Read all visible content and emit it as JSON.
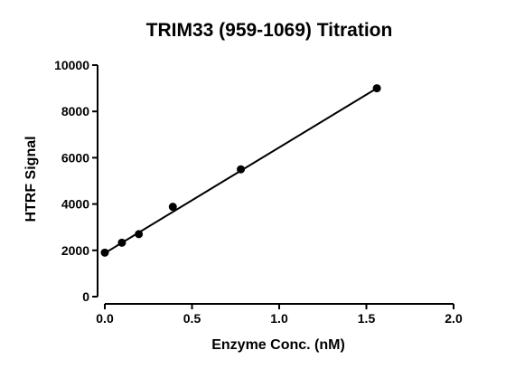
{
  "chart_data": {
    "type": "scatter",
    "title": "TRIM33 (959-1069) Titration",
    "xlabel": "Enzyme Conc. (nM)",
    "ylabel": "HTRF Signal",
    "xlim": [
      0,
      2.0
    ],
    "ylim": [
      0,
      10000
    ],
    "x_ticks": [
      0.0,
      0.5,
      1.0,
      1.5,
      2.0
    ],
    "x_tick_labels": [
      "0.0",
      "0.5",
      "1.0",
      "1.5",
      "2.0"
    ],
    "y_ticks": [
      0,
      2000,
      4000,
      6000,
      8000,
      10000
    ],
    "y_tick_labels": [
      "0",
      "2000",
      "4000",
      "6000",
      "8000",
      "10000"
    ],
    "grid": false,
    "series": [
      {
        "x": [
          0.0,
          0.098,
          0.195,
          0.39,
          0.78,
          1.56
        ],
        "y": [
          1900,
          2330,
          2700,
          3880,
          5500,
          9000
        ]
      }
    ],
    "fit_line": {
      "x": [
        0.0,
        1.56
      ],
      "y": [
        1880,
        9000
      ]
    }
  }
}
